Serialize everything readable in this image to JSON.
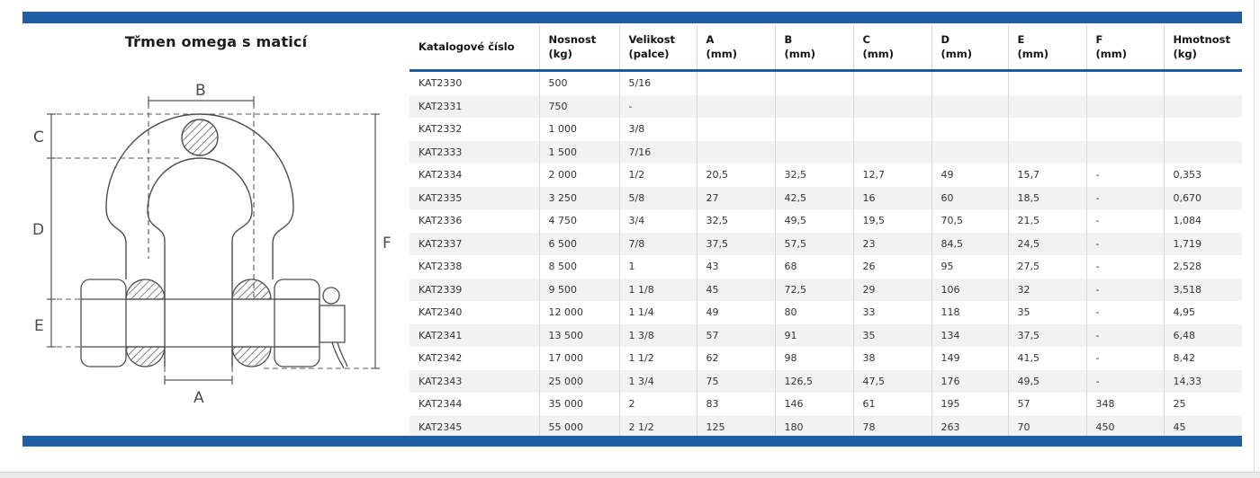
{
  "diagram": {
    "title": "Třmen omega s maticí",
    "labels": {
      "a": "A",
      "b": "B",
      "c": "C",
      "d": "D",
      "e": "E",
      "f": "F"
    }
  },
  "table": {
    "columns": [
      {
        "label": "Katalogové číslo",
        "unit": ""
      },
      {
        "label": "Nosnost",
        "unit": "(kg)"
      },
      {
        "label": "Velikost",
        "unit": "(palce)"
      },
      {
        "label": "A",
        "unit": "(mm)"
      },
      {
        "label": "B",
        "unit": "(mm)"
      },
      {
        "label": "C",
        "unit": "(mm)"
      },
      {
        "label": "D",
        "unit": "(mm)"
      },
      {
        "label": "E",
        "unit": "(mm)"
      },
      {
        "label": "F",
        "unit": "(mm)"
      },
      {
        "label": "Hmotnost",
        "unit": "(kg)"
      }
    ],
    "rows": [
      [
        "KAT2330",
        "500",
        "5/16",
        "",
        "",
        "",
        "",
        "",
        "",
        ""
      ],
      [
        "KAT2331",
        "750",
        "-",
        "",
        "",
        "",
        "",
        "",
        "",
        ""
      ],
      [
        "KAT2332",
        "1 000",
        "3/8",
        "",
        "",
        "",
        "",
        "",
        "",
        ""
      ],
      [
        "KAT2333",
        "1 500",
        "7/16",
        "",
        "",
        "",
        "",
        "",
        "",
        ""
      ],
      [
        "KAT2334",
        "2 000",
        "1/2",
        "20,5",
        "32,5",
        "12,7",
        "49",
        "15,7",
        "-",
        "0,353"
      ],
      [
        "KAT2335",
        "3 250",
        "5/8",
        "27",
        "42,5",
        "16",
        "60",
        "18,5",
        "-",
        "0,670"
      ],
      [
        "KAT2336",
        "4 750",
        "3/4",
        "32,5",
        "49,5",
        "19,5",
        "70,5",
        "21,5",
        "-",
        "1,084"
      ],
      [
        "KAT2337",
        "6 500",
        "7/8",
        "37,5",
        "57,5",
        "23",
        "84,5",
        "24,5",
        "-",
        "1,719"
      ],
      [
        "KAT2338",
        "8 500",
        "1",
        "43",
        "68",
        "26",
        "95",
        "27,5",
        "-",
        "2,528"
      ],
      [
        "KAT2339",
        "9 500",
        "1 1/8",
        "45",
        "72,5",
        "29",
        "106",
        "32",
        "-",
        "3,518"
      ],
      [
        "KAT2340",
        "12 000",
        "1 1/4",
        "49",
        "80",
        "33",
        "118",
        "35",
        "-",
        "4,95"
      ],
      [
        "KAT2341",
        "13 500",
        "1 3/8",
        "57",
        "91",
        "35",
        "134",
        "37,5",
        "-",
        "6,48"
      ],
      [
        "KAT2342",
        "17 000",
        "1 1/2",
        "62",
        "98",
        "38",
        "149",
        "41,5",
        "-",
        "8,42"
      ],
      [
        "KAT2343",
        "25 000",
        "1 3/4",
        "75",
        "126,5",
        "47,5",
        "176",
        "49,5",
        "-",
        "14,33"
      ],
      [
        "KAT2344",
        "35 000",
        "2",
        "83",
        "146",
        "61",
        "195",
        "57",
        "348",
        "25"
      ],
      [
        "KAT2345",
        "55 000",
        "2 1/2",
        "125",
        "180",
        "78",
        "263",
        "70",
        "450",
        "45"
      ]
    ]
  },
  "colors": {
    "accent_blue": "#1f5fa6",
    "header_rule_blue": "#1b5a9c",
    "row_alt_gray": "#f2f2f2",
    "grid_gray": "#d9d9d9"
  }
}
